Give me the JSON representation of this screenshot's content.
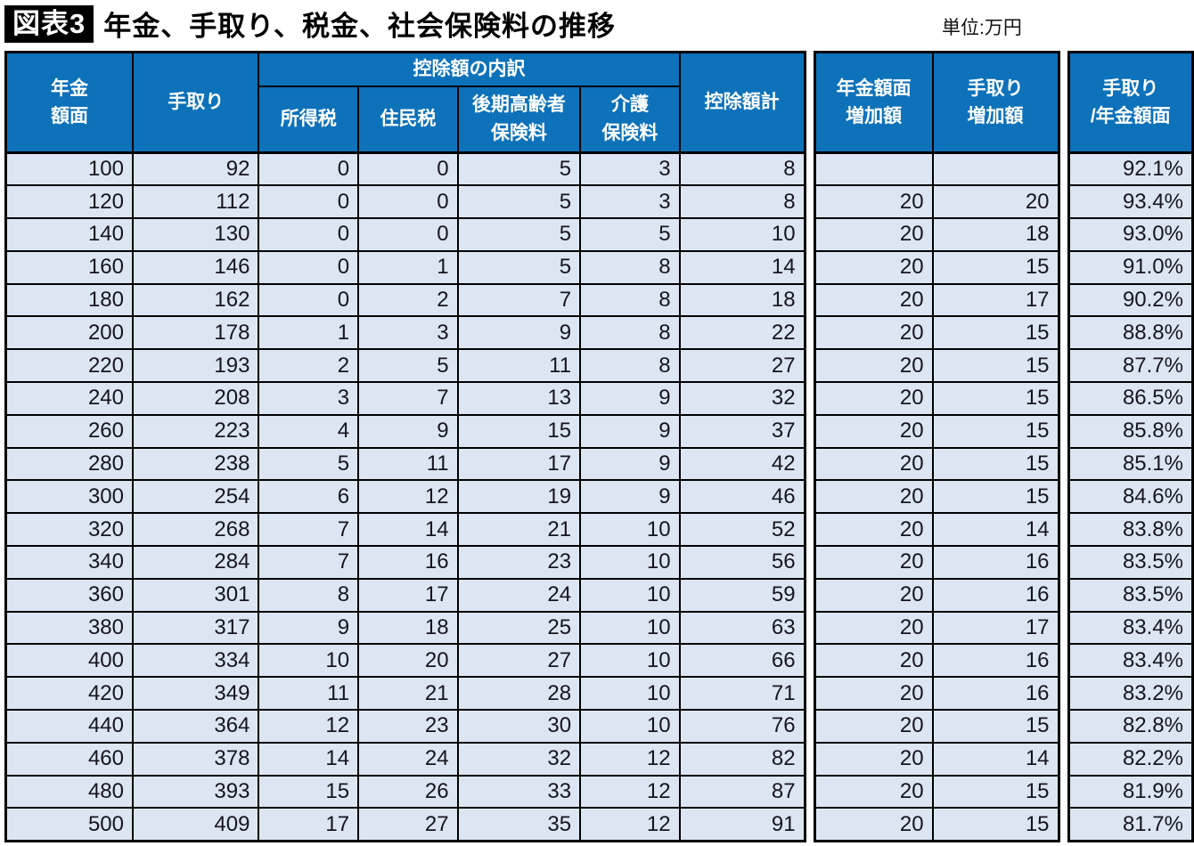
{
  "header": {
    "figure_label": "図表3",
    "title": "年金、手取り、税金、社会保険料の推移",
    "unit_label": "単位:万円"
  },
  "labels": {
    "pension_face": "年金\n額面",
    "takehome": "手取り",
    "deduction_group": "控除額の内訳",
    "income_tax": "所得税",
    "resident_tax": "住民税",
    "late_elderly": "後期高齢者\n保険料",
    "nursing": "介護\n保険料",
    "deduction_total": "控除額計",
    "pension_increase": "年金額面\n増加額",
    "takehome_increase": "手取り\n増加額",
    "ratio": "手取り\n/年金額面"
  },
  "colors": {
    "header_blue": "#0e72ba",
    "row_fill": "#dce6f2",
    "border": "#000000",
    "title_box_bg": "#000000",
    "title_box_text": "#ffffff"
  },
  "chart_data": {
    "type": "table",
    "title": "年金、手取り、税金、社会保険料の推移",
    "unit": "万円",
    "column_ids": [
      "pension_face",
      "takehome",
      "income_tax",
      "resident_tax",
      "late_elderly_premium",
      "nursing_premium",
      "deduction_total",
      "pension_face_increase",
      "takehome_increase",
      "takehome_ratio"
    ],
    "columns": [
      "年金額面",
      "手取り",
      "所得税",
      "住民税",
      "後期高齢者保険料",
      "介護保険料",
      "控除額計",
      "年金額面増加額",
      "手取り増加額",
      "手取り/年金額面"
    ],
    "rows": [
      [
        100,
        92,
        0,
        0,
        5,
        3,
        8,
        "",
        "",
        "92.1%"
      ],
      [
        120,
        112,
        0,
        0,
        5,
        3,
        8,
        20,
        20,
        "93.4%"
      ],
      [
        140,
        130,
        0,
        0,
        5,
        5,
        10,
        20,
        18,
        "93.0%"
      ],
      [
        160,
        146,
        0,
        1,
        5,
        8,
        14,
        20,
        15,
        "91.0%"
      ],
      [
        180,
        162,
        0,
        2,
        7,
        8,
        18,
        20,
        17,
        "90.2%"
      ],
      [
        200,
        178,
        1,
        3,
        9,
        8,
        22,
        20,
        15,
        "88.8%"
      ],
      [
        220,
        193,
        2,
        5,
        11,
        8,
        27,
        20,
        15,
        "87.7%"
      ],
      [
        240,
        208,
        3,
        7,
        13,
        9,
        32,
        20,
        15,
        "86.5%"
      ],
      [
        260,
        223,
        4,
        9,
        15,
        9,
        37,
        20,
        15,
        "85.8%"
      ],
      [
        280,
        238,
        5,
        11,
        17,
        9,
        42,
        20,
        15,
        "85.1%"
      ],
      [
        300,
        254,
        6,
        12,
        19,
        9,
        46,
        20,
        15,
        "84.6%"
      ],
      [
        320,
        268,
        7,
        14,
        21,
        10,
        52,
        20,
        14,
        "83.8%"
      ],
      [
        340,
        284,
        7,
        16,
        23,
        10,
        56,
        20,
        16,
        "83.5%"
      ],
      [
        360,
        301,
        8,
        17,
        24,
        10,
        59,
        20,
        16,
        "83.5%"
      ],
      [
        380,
        317,
        9,
        18,
        25,
        10,
        63,
        20,
        17,
        "83.4%"
      ],
      [
        400,
        334,
        10,
        20,
        27,
        10,
        66,
        20,
        16,
        "83.4%"
      ],
      [
        420,
        349,
        11,
        21,
        28,
        10,
        71,
        20,
        16,
        "83.2%"
      ],
      [
        440,
        364,
        12,
        23,
        30,
        10,
        76,
        20,
        15,
        "82.8%"
      ],
      [
        460,
        378,
        14,
        24,
        32,
        12,
        82,
        20,
        14,
        "82.2%"
      ],
      [
        480,
        393,
        15,
        26,
        33,
        12,
        87,
        20,
        15,
        "81.9%"
      ],
      [
        500,
        409,
        17,
        27,
        35,
        12,
        91,
        20,
        15,
        "81.7%"
      ]
    ]
  }
}
